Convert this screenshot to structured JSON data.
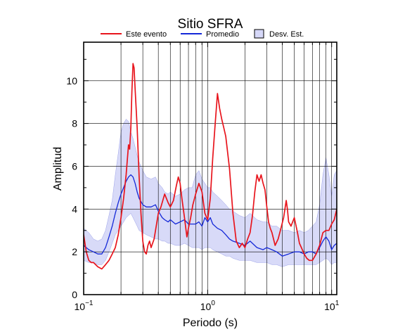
{
  "chart_data": {
    "type": "line",
    "title": "Sitio SFRA",
    "xlabel": "Periodo (s)",
    "ylabel": "Amplitud",
    "x_scale": "log",
    "xlim": [
      0.1,
      11
    ],
    "ylim": [
      0,
      11.8
    ],
    "grid": true,
    "legend_position": "top",
    "x_ticks": [
      {
        "value": 0.1,
        "base": "10",
        "exp": "−1"
      },
      {
        "value": 1,
        "base": "10",
        "exp": "0"
      },
      {
        "value": 10,
        "base": "10",
        "exp": "1"
      }
    ],
    "y_ticks": [
      {
        "value": 0,
        "label": "0"
      },
      {
        "value": 2,
        "label": "2"
      },
      {
        "value": 4,
        "label": "4"
      },
      {
        "value": 6,
        "label": "6"
      },
      {
        "value": 8,
        "label": "8"
      },
      {
        "value": 10,
        "label": "10"
      }
    ],
    "colors": {
      "event": "#e8141c",
      "mean": "#1428d8",
      "band_fill": "#d6d8f8",
      "band_edge": "#9aa0e8",
      "grid": "#000000"
    },
    "legend": [
      {
        "label": "Este evento",
        "kind": "line",
        "color": "#e8141c"
      },
      {
        "label": "Promedio",
        "kind": "line",
        "color": "#1428d8"
      },
      {
        "label": "Desv. Est.",
        "kind": "box",
        "color": "#d6d8f8"
      }
    ],
    "series": [
      {
        "name": "Este evento",
        "x": [
          0.1,
          0.105,
          0.11,
          0.115,
          0.12,
          0.13,
          0.14,
          0.15,
          0.16,
          0.17,
          0.18,
          0.19,
          0.2,
          0.21,
          0.22,
          0.23,
          0.235,
          0.24,
          0.245,
          0.25,
          0.255,
          0.26,
          0.27,
          0.28,
          0.29,
          0.3,
          0.31,
          0.32,
          0.33,
          0.34,
          0.35,
          0.37,
          0.4,
          0.42,
          0.45,
          0.48,
          0.5,
          0.53,
          0.56,
          0.58,
          0.6,
          0.62,
          0.65,
          0.68,
          0.7,
          0.73,
          0.76,
          0.8,
          0.85,
          0.9,
          0.95,
          1.0,
          1.05,
          1.1,
          1.15,
          1.2,
          1.25,
          1.3,
          1.35,
          1.4,
          1.5,
          1.6,
          1.7,
          1.8,
          1.9,
          2.0,
          2.1,
          2.2,
          2.3,
          2.4,
          2.5,
          2.6,
          2.7,
          2.8,
          2.9,
          3.0,
          3.1,
          3.2,
          3.3,
          3.5,
          3.7,
          3.9,
          4.1,
          4.3,
          4.4,
          4.5,
          4.7,
          5.0,
          5.3,
          5.5,
          5.8,
          6.0,
          6.3,
          6.6,
          7.0,
          7.5,
          8.0,
          8.5,
          9.0,
          9.5,
          10.0,
          10.5,
          11.0
        ],
        "y": [
          2.8,
          2.0,
          1.6,
          1.5,
          1.5,
          1.3,
          1.2,
          1.4,
          1.6,
          1.9,
          2.2,
          2.8,
          3.6,
          4.5,
          5.6,
          7.0,
          6.8,
          7.8,
          9.5,
          10.8,
          10.6,
          9.6,
          7.8,
          5.5,
          3.8,
          2.5,
          2.0,
          1.9,
          2.3,
          2.5,
          2.2,
          2.6,
          3.8,
          4.1,
          4.7,
          4.3,
          4.1,
          4.4,
          5.1,
          5.5,
          5.2,
          4.5,
          3.6,
          2.7,
          3.1,
          3.6,
          4.2,
          4.7,
          5.2,
          4.8,
          3.8,
          3.5,
          4.5,
          6.4,
          8.0,
          9.4,
          8.7,
          8.2,
          7.8,
          7.4,
          5.9,
          3.8,
          2.5,
          2.2,
          2.4,
          2.2,
          2.6,
          2.9,
          3.7,
          4.8,
          5.6,
          5.3,
          5.6,
          5.2,
          4.9,
          4.1,
          3.4,
          3.1,
          2.9,
          2.3,
          2.6,
          3.1,
          3.6,
          4.4,
          4.0,
          3.4,
          3.2,
          3.6,
          2.9,
          2.4,
          2.1,
          1.9,
          1.7,
          1.6,
          1.6,
          1.9,
          2.3,
          2.9,
          3.0,
          3.0,
          3.3,
          3.5,
          4.0
        ]
      },
      {
        "name": "Promedio",
        "x": [
          0.1,
          0.11,
          0.12,
          0.13,
          0.14,
          0.15,
          0.16,
          0.17,
          0.18,
          0.19,
          0.2,
          0.21,
          0.22,
          0.23,
          0.24,
          0.25,
          0.26,
          0.27,
          0.28,
          0.3,
          0.32,
          0.35,
          0.38,
          0.4,
          0.43,
          0.45,
          0.48,
          0.5,
          0.55,
          0.6,
          0.65,
          0.7,
          0.75,
          0.8,
          0.85,
          0.9,
          0.95,
          1.0,
          1.05,
          1.1,
          1.2,
          1.3,
          1.4,
          1.5,
          1.6,
          1.8,
          2.0,
          2.2,
          2.5,
          2.8,
          3.0,
          3.3,
          3.6,
          4.0,
          4.5,
          5.0,
          5.5,
          6.0,
          6.5,
          7.0,
          7.5,
          8.0,
          8.5,
          9.0,
          9.5,
          10.0,
          10.5,
          11.0
        ],
        "y": [
          2.3,
          2.1,
          2.0,
          1.9,
          1.9,
          2.2,
          2.7,
          3.2,
          3.8,
          4.3,
          4.7,
          5.0,
          5.3,
          5.5,
          5.6,
          5.5,
          5.2,
          4.8,
          4.5,
          4.2,
          4.1,
          4.1,
          4.2,
          3.9,
          3.6,
          3.5,
          3.4,
          3.5,
          3.3,
          3.4,
          3.5,
          3.3,
          3.3,
          3.3,
          3.4,
          3.2,
          3.6,
          3.4,
          3.6,
          3.3,
          3.1,
          3.0,
          2.8,
          2.6,
          2.5,
          2.4,
          2.3,
          2.5,
          2.2,
          2.1,
          2.2,
          2.1,
          2.0,
          1.8,
          1.9,
          2.0,
          2.0,
          1.9,
          2.0,
          2.0,
          1.9,
          2.2,
          2.5,
          2.7,
          2.5,
          2.1,
          2.3,
          2.4
        ]
      },
      {
        "name": "Desv. Est.",
        "x": [
          0.1,
          0.11,
          0.12,
          0.13,
          0.14,
          0.15,
          0.16,
          0.17,
          0.18,
          0.19,
          0.2,
          0.21,
          0.22,
          0.23,
          0.24,
          0.25,
          0.26,
          0.27,
          0.28,
          0.3,
          0.32,
          0.35,
          0.38,
          0.4,
          0.43,
          0.45,
          0.48,
          0.5,
          0.55,
          0.6,
          0.65,
          0.7,
          0.75,
          0.8,
          0.85,
          0.9,
          0.95,
          1.0,
          1.05,
          1.1,
          1.2,
          1.3,
          1.4,
          1.5,
          1.6,
          1.8,
          2.0,
          2.2,
          2.5,
          2.8,
          3.0,
          3.3,
          3.6,
          4.0,
          4.5,
          5.0,
          5.5,
          6.0,
          6.5,
          7.0,
          7.5,
          8.0,
          8.5,
          9.0,
          9.5,
          10.0,
          10.5,
          11.0
        ],
        "y_low": [
          1.6,
          1.5,
          1.5,
          1.4,
          1.4,
          1.6,
          2.0,
          2.4,
          2.8,
          3.0,
          3.2,
          3.4,
          3.6,
          3.7,
          3.8,
          3.6,
          3.4,
          3.2,
          3.0,
          2.9,
          2.8,
          2.7,
          2.6,
          2.6,
          2.5,
          2.5,
          2.4,
          2.4,
          2.3,
          2.3,
          2.4,
          2.3,
          2.2,
          2.2,
          2.2,
          2.1,
          2.2,
          2.2,
          2.2,
          2.1,
          2.0,
          1.9,
          1.8,
          1.8,
          1.7,
          1.6,
          1.6,
          1.6,
          1.5,
          1.5,
          1.5,
          1.4,
          1.4,
          1.3,
          1.4,
          1.4,
          1.4,
          1.4,
          1.4,
          1.4,
          1.4,
          1.5,
          1.6,
          1.7,
          1.6,
          1.4,
          1.5,
          1.5
        ],
        "y_high": [
          3.1,
          2.9,
          2.6,
          2.5,
          2.6,
          3.0,
          3.7,
          4.4,
          5.6,
          6.6,
          7.6,
          8.0,
          8.2,
          8.1,
          7.6,
          7.3,
          6.9,
          6.5,
          6.2,
          5.8,
          5.5,
          5.4,
          5.5,
          5.2,
          5.0,
          4.8,
          4.7,
          4.8,
          4.6,
          4.7,
          4.9,
          5.0,
          5.0,
          5.6,
          5.8,
          5.4,
          5.2,
          5.0,
          5.0,
          4.8,
          4.6,
          4.4,
          4.2,
          4.0,
          3.9,
          3.7,
          3.6,
          3.8,
          3.5,
          3.4,
          3.4,
          3.2,
          3.2,
          3.0,
          3.0,
          2.9,
          3.0,
          2.9,
          3.0,
          3.2,
          3.4,
          4.2,
          5.6,
          6.4,
          5.6,
          4.6,
          5.6,
          5.8
        ]
      }
    ]
  }
}
